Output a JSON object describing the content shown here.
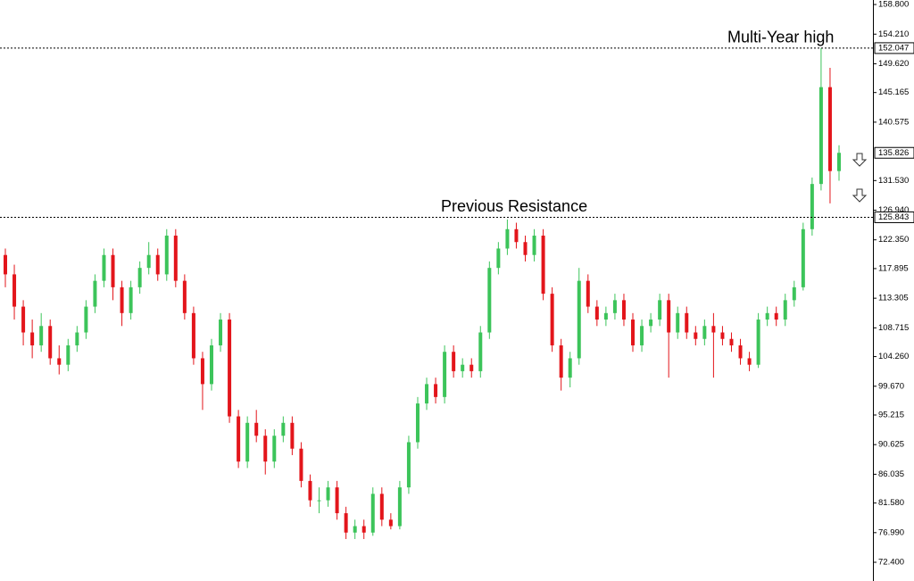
{
  "chart_data": {
    "type": "candlestick",
    "colors": {
      "up": "#3cc45a",
      "down": "#e3151b"
    },
    "ylim": [
      69.5,
      159.5
    ],
    "yticks": [
      {
        "value": 158.8,
        "label": "158.800"
      },
      {
        "value": 154.21,
        "label": "154.210"
      },
      {
        "value": 149.62,
        "label": "149.620"
      },
      {
        "value": 145.165,
        "label": "145.165"
      },
      {
        "value": 140.575,
        "label": "140.575"
      },
      {
        "value": 131.53,
        "label": "131.530"
      },
      {
        "value": 126.94,
        "label": "126.940"
      },
      {
        "value": 122.35,
        "label": "122.350"
      },
      {
        "value": 117.895,
        "label": "117.895"
      },
      {
        "value": 113.305,
        "label": "113.305"
      },
      {
        "value": 108.715,
        "label": "108.715"
      },
      {
        "value": 104.26,
        "label": "104.260"
      },
      {
        "value": 99.67,
        "label": "99.670"
      },
      {
        "value": 95.215,
        "label": "95.215"
      },
      {
        "value": 90.625,
        "label": "90.625"
      },
      {
        "value": 86.035,
        "label": "86.035"
      },
      {
        "value": 81.58,
        "label": "81.580"
      },
      {
        "value": 76.99,
        "label": "76.990"
      },
      {
        "value": 72.4,
        "label": "72.400"
      }
    ],
    "levels": [
      {
        "value": 152.047,
        "label": "152.047",
        "text": "Multi-Year high"
      },
      {
        "value": 125.843,
        "label": "125.843",
        "text": "Previous Resistance"
      }
    ],
    "last_price": {
      "value": 135.826,
      "label": "135.826"
    },
    "candles": [
      [
        120,
        121,
        115,
        117
      ],
      [
        117,
        118.5,
        110,
        112
      ],
      [
        112,
        113,
        106,
        108
      ],
      [
        108,
        110,
        104,
        106
      ],
      [
        106,
        111,
        105,
        109
      ],
      [
        109,
        110,
        103,
        104
      ],
      [
        104,
        106,
        101.5,
        103
      ],
      [
        103,
        107,
        102,
        106
      ],
      [
        106,
        109,
        105,
        108
      ],
      [
        108,
        113,
        107,
        112
      ],
      [
        112,
        117,
        111,
        116
      ],
      [
        116,
        121,
        115,
        120
      ],
      [
        120,
        121,
        113,
        115
      ],
      [
        115,
        116,
        109,
        111
      ],
      [
        111,
        116,
        110,
        115
      ],
      [
        115,
        119,
        114,
        118
      ],
      [
        118,
        122,
        117,
        120
      ],
      [
        120,
        121,
        116,
        117
      ],
      [
        117,
        124,
        116,
        123
      ],
      [
        123,
        124,
        115,
        116
      ],
      [
        116,
        117,
        110,
        111
      ],
      [
        111,
        112,
        103,
        104
      ],
      [
        104,
        105,
        96,
        100
      ],
      [
        100,
        107,
        99,
        106
      ],
      [
        106,
        111,
        105,
        110
      ],
      [
        110,
        111,
        94,
        95
      ],
      [
        95,
        96,
        87,
        88
      ],
      [
        88,
        95,
        87,
        94
      ],
      [
        94,
        96,
        91,
        92
      ],
      [
        92,
        93,
        86,
        88
      ],
      [
        88,
        93,
        87,
        92
      ],
      [
        92,
        95,
        91,
        94
      ],
      [
        94,
        95,
        89,
        90
      ],
      [
        90,
        91,
        84,
        85
      ],
      [
        85,
        86,
        81,
        82
      ],
      [
        82,
        84,
        80,
        82
      ],
      [
        82,
        85,
        81,
        84
      ],
      [
        84,
        85,
        79,
        80
      ],
      [
        80,
        81,
        76,
        77
      ],
      [
        77,
        79,
        76,
        78
      ],
      [
        78,
        79,
        76,
        77
      ],
      [
        77,
        84,
        76.5,
        83
      ],
      [
        83,
        84,
        78,
        79
      ],
      [
        79,
        80,
        77.5,
        78
      ],
      [
        78,
        85,
        77.5,
        84
      ],
      [
        84,
        92,
        83,
        91
      ],
      [
        91,
        98,
        90,
        97
      ],
      [
        97,
        101,
        96,
        100
      ],
      [
        100,
        101,
        97,
        98
      ],
      [
        98,
        106,
        97,
        105
      ],
      [
        105,
        106,
        101,
        102
      ],
      [
        102,
        104,
        101,
        103
      ],
      [
        103,
        104,
        101,
        102
      ],
      [
        102,
        109,
        101,
        108
      ],
      [
        108,
        119,
        107,
        118
      ],
      [
        118,
        122,
        117,
        121
      ],
      [
        121,
        125.5,
        120,
        124
      ],
      [
        124,
        125,
        121,
        122
      ],
      [
        122,
        123,
        119,
        120
      ],
      [
        120,
        124,
        119,
        123
      ],
      [
        123,
        124,
        113,
        114
      ],
      [
        114,
        115,
        105,
        106
      ],
      [
        106,
        107,
        99,
        101
      ],
      [
        101,
        105,
        99.5,
        104
      ],
      [
        104,
        118,
        103,
        116
      ],
      [
        116,
        117,
        111,
        112
      ],
      [
        112,
        113,
        109,
        110
      ],
      [
        110,
        112,
        109,
        111
      ],
      [
        111,
        114,
        110,
        113
      ],
      [
        113,
        114,
        109,
        110
      ],
      [
        110,
        111,
        105,
        106
      ],
      [
        106,
        110,
        105,
        109
      ],
      [
        109,
        111,
        108,
        110
      ],
      [
        110,
        114,
        109,
        113
      ],
      [
        113,
        114,
        101,
        108
      ],
      [
        108,
        112,
        107,
        111
      ],
      [
        111,
        112,
        107,
        108
      ],
      [
        108,
        109,
        106,
        107
      ],
      [
        107,
        110,
        106,
        109
      ],
      [
        109,
        111,
        101,
        108
      ],
      [
        108,
        109,
        106,
        107
      ],
      [
        107,
        108,
        105,
        106
      ],
      [
        106,
        107,
        103,
        104
      ],
      [
        104,
        105,
        102,
        103
      ],
      [
        103,
        111,
        102.5,
        110
      ],
      [
        110,
        112,
        109,
        111
      ],
      [
        111,
        112,
        109,
        110
      ],
      [
        110,
        114,
        109,
        113
      ],
      [
        113,
        116,
        112,
        115
      ],
      [
        115,
        125,
        114.5,
        124
      ],
      [
        124,
        132,
        123,
        131
      ],
      [
        131,
        152.047,
        130,
        146
      ],
      [
        146,
        149,
        128,
        133
      ],
      [
        133,
        137,
        131.5,
        135.826
      ]
    ]
  }
}
